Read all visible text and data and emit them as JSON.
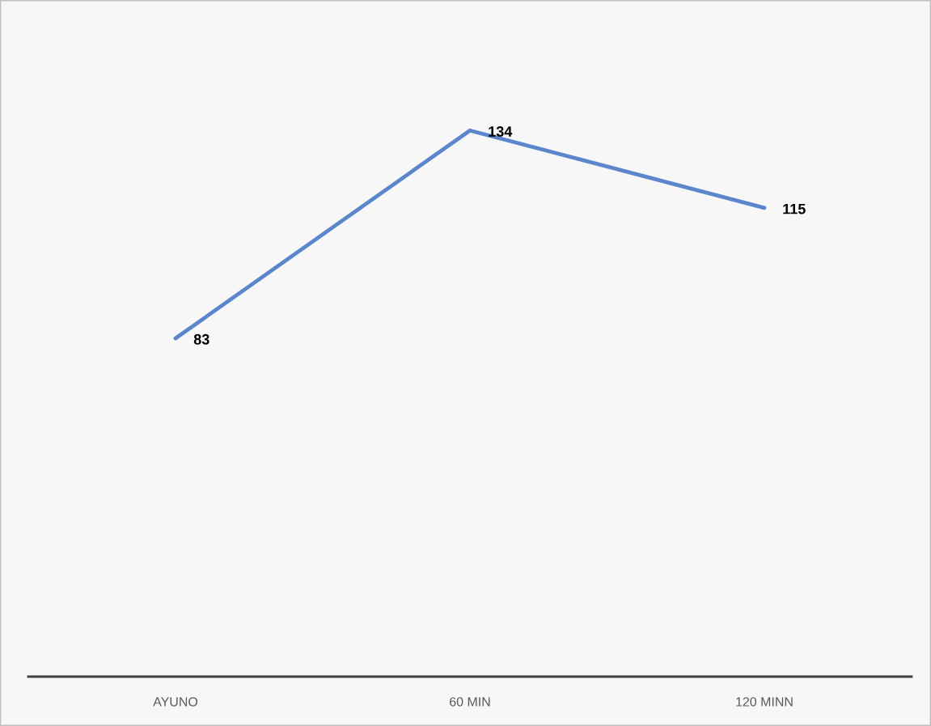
{
  "chart_data": {
    "type": "line",
    "categories": [
      "AYUNO",
      "60 MIN",
      "120 MINN"
    ],
    "series": [
      {
        "color": "#5b86cc",
        "values": [
          83,
          134,
          115
        ]
      }
    ],
    "data_labels": true,
    "grid": false,
    "legend": false,
    "marker": "none",
    "line_style": "solid",
    "tick_labels": "x"
  }
}
